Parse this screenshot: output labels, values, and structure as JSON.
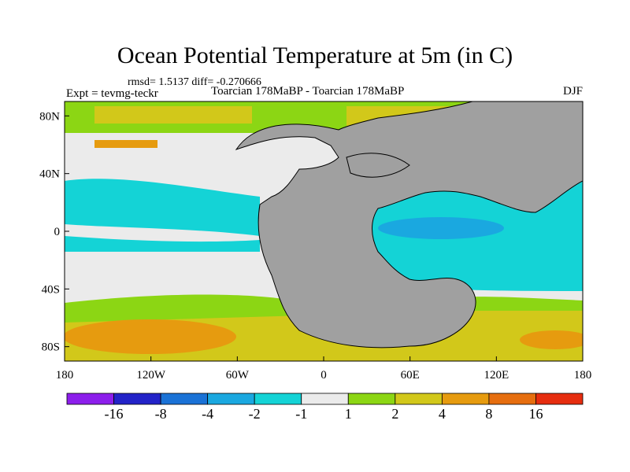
{
  "header": {
    "title": "Ocean Potential Temperature at 5m (in C)",
    "stats": "rmsd= 1.5137 diff= -0.270666",
    "experiment": "Expt = tevmg-teckr",
    "comparison": "Toarcian 178MaBP - Toarcian 178MaBP",
    "season": "DJF"
  },
  "chart_data": {
    "type": "heatmap",
    "title": "Ocean Potential Temperature at 5m (in C)",
    "x_ticks": [
      "180",
      "120W",
      "60W",
      "0",
      "60E",
      "120E",
      "180"
    ],
    "y_ticks": [
      "80N",
      "40N",
      "0",
      "40S",
      "80S"
    ],
    "xlim": [
      -180,
      180
    ],
    "ylim": [
      -90,
      90
    ],
    "colorbar": {
      "levels": [
        "-16",
        "-8",
        "-4",
        "-2",
        "-1",
        "1",
        "2",
        "4",
        "8",
        "16"
      ],
      "colors": [
        "#8c1eeb",
        "#2323c8",
        "#1a72d6",
        "#1aa8e0",
        "#14d3d6",
        "#ebebeb",
        "#8cd614",
        "#d2c81a",
        "#e69b0f",
        "#e66e0f",
        "#e62d0f"
      ]
    },
    "land_color": "#a0a0a0"
  }
}
